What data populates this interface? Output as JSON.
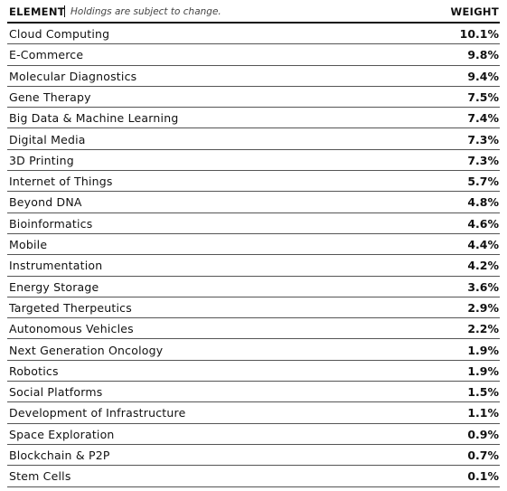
{
  "header": {
    "element": "ELEMENT",
    "note": "Holdings are subject to change.",
    "weight": "WEIGHT"
  },
  "table": {
    "rows": [
      [
        "Cloud Computing",
        "10.1%"
      ],
      [
        "E-Commerce",
        "9.8%"
      ],
      [
        "Molecular Diagnostics",
        "9.4%"
      ],
      [
        "Gene Therapy",
        "7.5%"
      ],
      [
        "Big Data & Machine Learning",
        "7.4%"
      ],
      [
        "Digital Media",
        "7.3%"
      ],
      [
        "3D Printing",
        "7.3%"
      ],
      [
        "Internet of Things",
        "5.7%"
      ],
      [
        "Beyond DNA",
        "4.8%"
      ],
      [
        "Bioinformatics",
        "4.6%"
      ],
      [
        "Mobile",
        "4.4%"
      ],
      [
        "Instrumentation",
        "4.2%"
      ],
      [
        "Energy Storage",
        "3.6%"
      ],
      [
        "Targeted Therpeutics",
        "2.9%"
      ],
      [
        "Autonomous Vehicles",
        "2.2%"
      ],
      [
        "Next Generation Oncology",
        "1.9%"
      ],
      [
        "Robotics",
        "1.9%"
      ],
      [
        "Social Platforms",
        "1.5%"
      ],
      [
        "Development of Infrastructure",
        "1.1%"
      ],
      [
        "Space Exploration",
        "0.9%"
      ],
      [
        "Blockchain & P2P",
        "0.7%"
      ],
      [
        "Stem Cells",
        "0.1%"
      ]
    ]
  }
}
